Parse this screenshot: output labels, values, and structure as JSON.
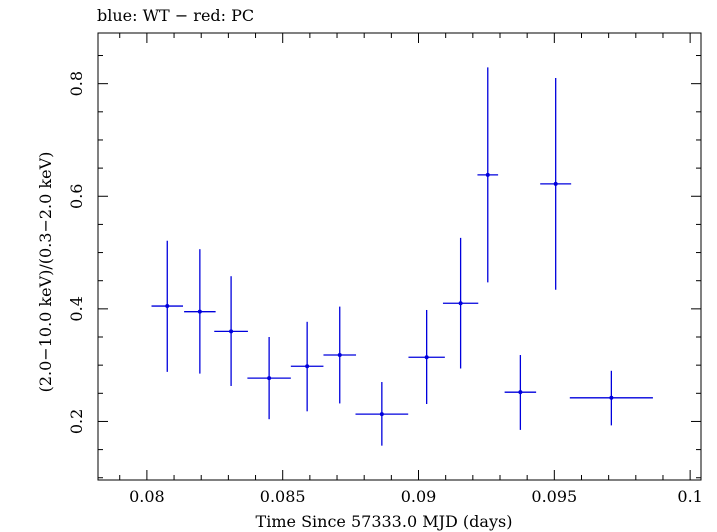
{
  "chart_data": {
    "type": "scatter",
    "title": "blue: WT − red: PC",
    "xlabel": "Time Since 57333.0 MJD (days)",
    "ylabel": "(2.0−10.0 keV)/(0.3−2.0 keV)",
    "xlim": [
      0.0782,
      0.1004
    ],
    "ylim": [
      0.096,
      0.89
    ],
    "x_ticks": [
      {
        "value": 0.08,
        "label": "0.08"
      },
      {
        "value": 0.085,
        "label": "0.085"
      },
      {
        "value": 0.09,
        "label": "0.09"
      },
      {
        "value": 0.095,
        "label": "0.095"
      },
      {
        "value": 0.1,
        "label": "0.1"
      }
    ],
    "y_ticks": [
      {
        "value": 0.2,
        "label": "0.2"
      },
      {
        "value": 0.4,
        "label": "0.4"
      },
      {
        "value": 0.6,
        "label": "0.6"
      },
      {
        "value": 0.8,
        "label": "0.8"
      }
    ],
    "grid": false,
    "series": [
      {
        "name": "WT",
        "color": "#0000dd",
        "points": [
          {
            "x": 0.08075,
            "xerr": 0.00058,
            "y": 0.405,
            "ylo": 0.288,
            "yhi": 0.521
          },
          {
            "x": 0.08195,
            "xerr": 0.00058,
            "y": 0.395,
            "ylo": 0.285,
            "yhi": 0.506
          },
          {
            "x": 0.0831,
            "xerr": 0.00062,
            "y": 0.36,
            "ylo": 0.263,
            "yhi": 0.458
          },
          {
            "x": 0.0845,
            "xerr": 0.0008,
            "y": 0.277,
            "ylo": 0.204,
            "yhi": 0.35
          },
          {
            "x": 0.0859,
            "xerr": 0.0006,
            "y": 0.298,
            "ylo": 0.218,
            "yhi": 0.377
          },
          {
            "x": 0.0871,
            "xerr": 0.0006,
            "y": 0.318,
            "ylo": 0.232,
            "yhi": 0.404
          },
          {
            "x": 0.08865,
            "xerr": 0.00097,
            "y": 0.213,
            "ylo": 0.157,
            "yhi": 0.27
          },
          {
            "x": 0.0903,
            "xerr": 0.00067,
            "y": 0.314,
            "ylo": 0.231,
            "yhi": 0.398
          },
          {
            "x": 0.09155,
            "xerr": 0.00065,
            "y": 0.41,
            "ylo": 0.294,
            "yhi": 0.526
          },
          {
            "x": 0.09255,
            "xerr": 0.00038,
            "y": 0.638,
            "ylo": 0.447,
            "yhi": 0.829
          },
          {
            "x": 0.09375,
            "xerr": 0.00058,
            "y": 0.252,
            "ylo": 0.185,
            "yhi": 0.318
          },
          {
            "x": 0.09505,
            "xerr": 0.00057,
            "y": 0.622,
            "ylo": 0.434,
            "yhi": 0.81
          },
          {
            "x": 0.0971,
            "xerr": 0.00153,
            "y": 0.242,
            "ylo": 0.193,
            "yhi": 0.29
          }
        ]
      }
    ]
  }
}
